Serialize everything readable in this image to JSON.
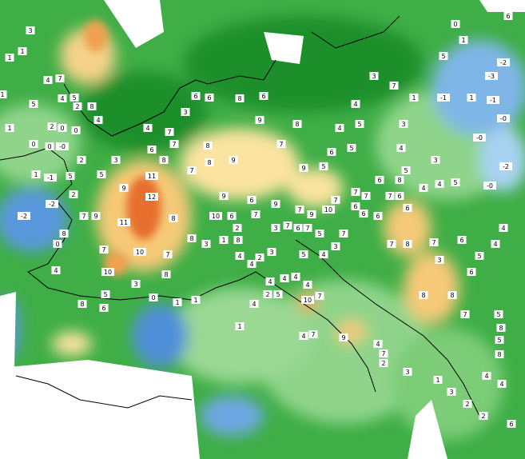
{
  "map": {
    "station_labels": [
      "3",
      "1",
      "1",
      "4",
      "7",
      "5",
      "4",
      "5",
      "2",
      "8",
      "1",
      "4",
      "1",
      "2",
      "0",
      "0",
      "0",
      "0",
      "-0",
      "2",
      "3",
      "1",
      "-1",
      "5",
      "5",
      "2",
      "-2",
      "-2",
      "7",
      "9",
      "9",
      "11",
      "12",
      "11",
      "8",
      "10",
      "7",
      "8",
      "0",
      "4",
      "10",
      "3",
      "8",
      "8",
      "7",
      "8",
      "6",
      "5",
      "0",
      "1",
      "1",
      "1",
      "4",
      "2",
      "5",
      "4",
      "4",
      "4",
      "4",
      "10",
      "7",
      "4",
      "9",
      "7",
      "4",
      "7",
      "2",
      "3",
      "1",
      "3",
      "2",
      "2",
      "6",
      "4",
      "4",
      "8",
      "5",
      "8",
      "5",
      "7",
      "8",
      "8",
      "6",
      "3",
      "8",
      "7",
      "6",
      "5",
      "4",
      "4",
      "6",
      "6",
      "6",
      "7",
      "10",
      "9",
      "7",
      "9",
      "6",
      "9",
      "10",
      "6",
      "2",
      "1",
      "3",
      "8",
      "7",
      "3",
      "7",
      "6",
      "7",
      "5",
      "7",
      "3",
      "4",
      "5",
      "3",
      "4",
      "4",
      "2",
      "9",
      "8",
      "8",
      "7",
      "7",
      "8",
      "4",
      "6",
      "7",
      "3",
      "6",
      "6",
      "8",
      "6",
      "9",
      "7",
      "8",
      "9",
      "5",
      "4",
      "4",
      "5",
      "6",
      "5",
      "3",
      "7",
      "1",
      "-1",
      "1",
      "-1",
      "-0",
      "-0",
      "-2",
      "-0",
      "-2",
      "-3",
      "6",
      "0",
      "1",
      "5",
      "3",
      "4",
      "3",
      "4",
      "5",
      "4",
      "8",
      "5",
      "6",
      "7",
      "7",
      "6",
      "7",
      "7",
      "6"
    ]
  }
}
